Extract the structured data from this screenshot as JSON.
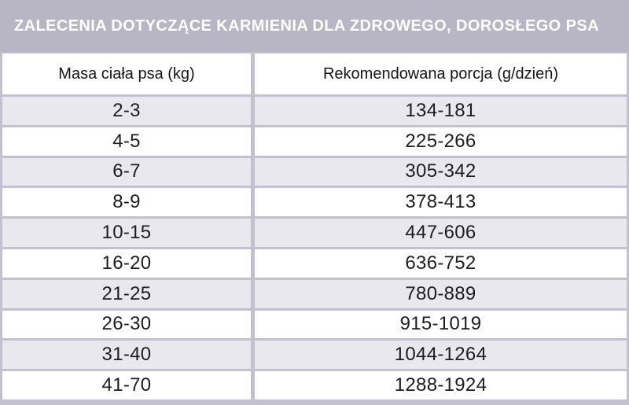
{
  "banner": {
    "title": "ZALECENIA DOTYCZĄCE KARMIENIA DLA ZDROWEGO, DOROSŁEGO PSA"
  },
  "table": {
    "columns": [
      "Masa ciała psa (kg)",
      "Rekomendowana porcja (g/dzień)"
    ],
    "rows": [
      {
        "weight": "2-3",
        "portion": "134-181"
      },
      {
        "weight": "4-5",
        "portion": "225-266"
      },
      {
        "weight": "6-7",
        "portion": "305-342"
      },
      {
        "weight": "8-9",
        "portion": "378-413"
      },
      {
        "weight": "10-15",
        "portion": "447-606"
      },
      {
        "weight": "16-20",
        "portion": "636-752"
      },
      {
        "weight": "21-25",
        "portion": "780-889"
      },
      {
        "weight": "26-30",
        "portion": "915-1019"
      },
      {
        "weight": "31-40",
        "portion": "1044-1264"
      },
      {
        "weight": "41-70",
        "portion": "1288-1924"
      }
    ]
  },
  "colors": {
    "banner_bg": "#b8b6c5",
    "banner_text": "#ffffff",
    "row_bg": "#ffffff",
    "row_alt_bg": "#e9e8ef",
    "divider": "#c3c1cf",
    "text": "#1d1d1f"
  }
}
